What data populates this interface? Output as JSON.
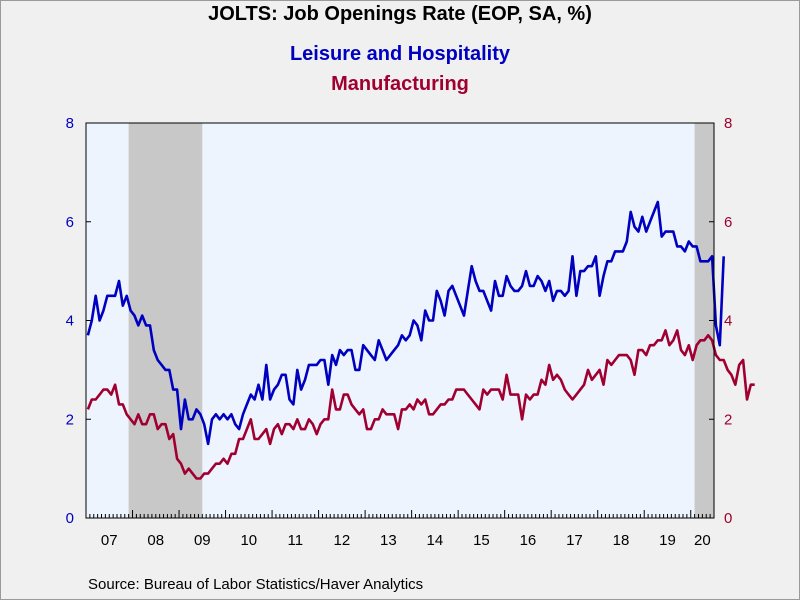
{
  "chart_data": {
    "type": "line",
    "title": "JOLTS: Job Openings Rate (EOP, SA, %)",
    "x_start": "2007-01",
    "x_end": "2020-06",
    "xlim": [
      "2007-01",
      "2020-07"
    ],
    "ylim": [
      0,
      8
    ],
    "y_ticks": [
      0,
      2,
      4,
      6,
      8
    ],
    "x_tick_labels": [
      "07",
      "08",
      "09",
      "10",
      "11",
      "12",
      "13",
      "14",
      "15",
      "16",
      "17",
      "18",
      "19",
      "20"
    ],
    "y2_ticks": [
      0,
      2,
      4,
      6,
      8
    ],
    "recessions": [
      {
        "start": "2007-12",
        "end": "2009-06"
      },
      {
        "start": "2020-02",
        "end": "2020-06"
      }
    ],
    "grid": false,
    "series": [
      {
        "name": "Leisure and Hospitality",
        "color": "#0000c0",
        "axis": "left",
        "values": [
          3.7,
          4.0,
          4.5,
          4.0,
          4.2,
          4.5,
          4.5,
          4.5,
          4.8,
          4.3,
          4.5,
          4.2,
          4.1,
          3.9,
          4.1,
          3.9,
          3.9,
          3.4,
          3.2,
          3.1,
          3.0,
          3.0,
          2.6,
          2.6,
          1.8,
          2.4,
          2.0,
          2.0,
          2.2,
          2.1,
          1.9,
          1.5,
          2.0,
          2.1,
          2.0,
          2.1,
          2.0,
          2.1,
          1.9,
          1.8,
          2.1,
          2.3,
          2.5,
          2.4,
          2.7,
          2.4,
          3.1,
          2.4,
          2.6,
          2.7,
          2.9,
          2.9,
          2.4,
          2.3,
          3.0,
          2.6,
          2.8,
          3.1,
          3.1,
          3.1,
          3.2,
          3.2,
          2.7,
          3.3,
          3.1,
          3.4,
          3.3,
          3.4,
          3.4,
          3.0,
          3.0,
          3.5,
          3.4,
          3.3,
          3.2,
          3.6,
          3.4,
          3.2,
          3.3,
          3.4,
          3.5,
          3.7,
          3.6,
          3.7,
          4.0,
          3.9,
          3.6,
          4.2,
          4.0,
          4.0,
          4.6,
          4.4,
          4.1,
          4.6,
          4.7,
          4.5,
          4.3,
          4.1,
          4.6,
          5.1,
          4.8,
          4.6,
          4.6,
          4.4,
          4.2,
          4.8,
          4.5,
          4.5,
          4.9,
          4.7,
          4.6,
          4.6,
          4.7,
          5.0,
          4.7,
          4.7,
          4.9,
          4.8,
          4.6,
          4.8,
          4.4,
          4.6,
          4.6,
          4.5,
          4.6,
          5.3,
          4.5,
          5.0,
          5.0,
          5.1,
          5.1,
          5.3,
          4.5,
          4.9,
          5.2,
          5.2,
          5.4,
          5.4,
          5.4,
          5.6,
          6.2,
          5.9,
          5.8,
          6.1,
          5.8,
          6.0,
          6.2,
          6.4,
          5.7,
          5.8,
          5.8,
          5.8,
          5.5,
          5.5,
          5.4,
          5.6,
          5.5,
          5.5,
          5.2,
          5.2,
          5.2,
          5.3,
          3.9,
          3.5,
          5.3
        ]
      },
      {
        "name": "Manufacturing",
        "color": "#a00030",
        "axis": "right",
        "values": [
          2.2,
          2.4,
          2.4,
          2.5,
          2.6,
          2.6,
          2.5,
          2.7,
          2.3,
          2.3,
          2.1,
          2.0,
          1.9,
          2.1,
          1.9,
          1.9,
          2.1,
          2.1,
          1.8,
          1.9,
          1.9,
          1.6,
          1.7,
          1.2,
          1.1,
          0.9,
          1.0,
          0.9,
          0.8,
          0.8,
          0.9,
          0.9,
          1.0,
          1.1,
          1.1,
          1.2,
          1.1,
          1.3,
          1.3,
          1.6,
          1.6,
          1.8,
          2.0,
          1.6,
          1.6,
          1.7,
          1.8,
          1.5,
          1.8,
          1.9,
          1.7,
          1.9,
          1.9,
          1.8,
          2.0,
          1.8,
          1.8,
          2.0,
          1.9,
          1.7,
          1.9,
          2.0,
          2.0,
          2.6,
          2.2,
          2.2,
          2.5,
          2.5,
          2.3,
          2.2,
          2.1,
          2.2,
          1.8,
          1.8,
          2.0,
          2.0,
          2.2,
          2.1,
          2.1,
          2.1,
          1.8,
          2.2,
          2.2,
          2.3,
          2.2,
          2.4,
          2.3,
          2.4,
          2.1,
          2.1,
          2.2,
          2.3,
          2.3,
          2.4,
          2.4,
          2.6,
          2.6,
          2.6,
          2.5,
          2.4,
          2.3,
          2.2,
          2.6,
          2.5,
          2.6,
          2.6,
          2.6,
          2.4,
          2.9,
          2.5,
          2.5,
          2.5,
          2.0,
          2.5,
          2.4,
          2.5,
          2.5,
          2.8,
          2.7,
          3.1,
          2.8,
          2.9,
          2.8,
          2.6,
          2.5,
          2.4,
          2.5,
          2.6,
          2.7,
          3.0,
          2.8,
          2.9,
          3.0,
          2.7,
          3.2,
          3.1,
          3.2,
          3.3,
          3.3,
          3.3,
          3.2,
          2.9,
          3.4,
          3.4,
          3.3,
          3.5,
          3.5,
          3.6,
          3.6,
          3.8,
          3.5,
          3.6,
          3.8,
          3.4,
          3.3,
          3.5,
          3.2,
          3.5,
          3.6,
          3.6,
          3.7,
          3.6,
          3.3,
          3.2,
          3.2,
          3.0,
          2.9,
          2.7,
          3.1,
          3.2,
          2.4,
          2.7,
          2.7
        ]
      }
    ]
  },
  "source_text": "Source:  Bureau of Labor Statistics/Haver Analytics"
}
